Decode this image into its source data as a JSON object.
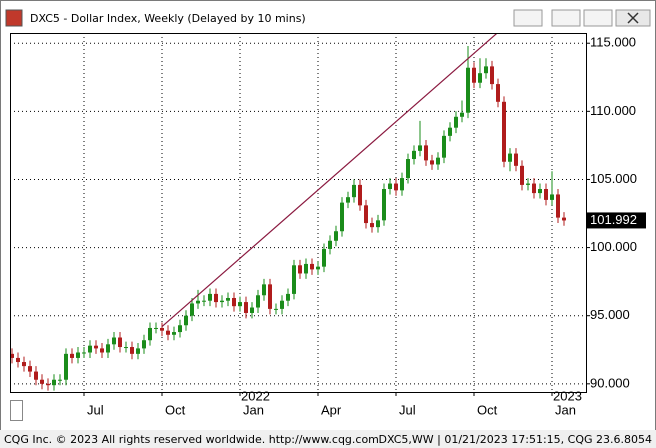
{
  "chart_data": {
    "type": "candlestick",
    "title": "DXC5 - Dollar Index, Weekly (Delayed by 10 mins)",
    "categories": [
      null,
      null,
      null,
      null,
      null,
      null,
      null,
      null,
      null,
      null,
      null,
      null,
      "Jul",
      null,
      null,
      null,
      null,
      null,
      null,
      null,
      null,
      null,
      null,
      null,
      null,
      "Oct",
      null,
      null,
      null,
      null,
      null,
      null,
      null,
      null,
      null,
      null,
      null,
      null,
      "Jan",
      null,
      null,
      null,
      null,
      null,
      null,
      null,
      null,
      null,
      null,
      null,
      null,
      "Apr",
      null,
      null,
      null,
      null,
      null,
      null,
      null,
      null,
      null,
      null,
      null,
      null,
      "Jul",
      null,
      null,
      null,
      null,
      null,
      null,
      null,
      null,
      null,
      null,
      null,
      null,
      "Oct",
      null,
      null,
      null,
      null,
      null,
      null,
      null,
      null,
      null,
      null,
      null,
      null,
      "Jan",
      null,
      null
    ],
    "year_labels": [
      "2022",
      "2023"
    ],
    "open": [
      92.2,
      91.9,
      91.6,
      91.3,
      90.9,
      90.3,
      90.0,
      89.9,
      90.3,
      90.3,
      92.2,
      91.9,
      92.3,
      92.3,
      92.8,
      92.6,
      92.3,
      92.9,
      93.4,
      92.7,
      92.7,
      92.2,
      92.6,
      93.2,
      94.1,
      94.1,
      93.9,
      93.6,
      93.8,
      94.3,
      95.0,
      95.9,
      96.1,
      96.1,
      96.6,
      96.0,
      96.1,
      96.3,
      95.7,
      96.0,
      95.2,
      95.6,
      96.5,
      97.3,
      95.5,
      95.5,
      96.1,
      96.6,
      98.7,
      98.1,
      98.8,
      98.4,
      98.6,
      99.9,
      100.5,
      101.2,
      103.3,
      103.7,
      104.6,
      103.1,
      101.8,
      101.5,
      102.0,
      104.3,
      104.7,
      104.2,
      105.1,
      106.5,
      107.1,
      107.5,
      106.4,
      106.1,
      106.6,
      108.2,
      108.8,
      109.6,
      109.9,
      113.2,
      112.1,
      112.8,
      113.3,
      112.0,
      110.7,
      106.3,
      106.9,
      106.0,
      104.6,
      104.7,
      104.0,
      104.3,
      103.5,
      103.9,
      102.2
    ],
    "high": [
      92.6,
      92.3,
      92.0,
      91.7,
      91.3,
      90.7,
      90.4,
      90.7,
      90.7,
      92.6,
      92.6,
      92.7,
      92.7,
      93.2,
      93.2,
      93.0,
      93.3,
      93.8,
      93.8,
      93.1,
      93.1,
      93.0,
      93.6,
      94.5,
      94.5,
      94.5,
      94.3,
      94.2,
      94.7,
      95.4,
      96.3,
      96.9,
      96.5,
      97.0,
      97.0,
      96.5,
      96.7,
      96.7,
      96.4,
      96.4,
      96.0,
      96.9,
      97.7,
      97.7,
      95.9,
      96.5,
      97.0,
      99.1,
      99.1,
      99.2,
      99.2,
      99.0,
      100.3,
      100.9,
      101.6,
      103.7,
      104.1,
      105.0,
      105.0,
      103.5,
      102.2,
      102.4,
      104.7,
      105.1,
      105.1,
      105.5,
      106.9,
      107.5,
      109.3,
      107.9,
      106.8,
      107.0,
      108.6,
      109.2,
      110.0,
      110.8,
      114.8,
      113.6,
      113.9,
      113.9,
      113.7,
      112.4,
      111.1,
      107.3,
      107.3,
      106.4,
      105.1,
      105.1,
      104.7,
      104.7,
      105.6,
      104.3,
      102.6
    ],
    "low": [
      91.5,
      91.2,
      90.9,
      90.5,
      89.9,
      89.6,
      89.5,
      89.5,
      89.9,
      89.9,
      91.5,
      91.5,
      91.9,
      91.9,
      92.2,
      91.9,
      91.9,
      92.5,
      92.3,
      92.3,
      91.8,
      91.8,
      92.2,
      92.8,
      93.7,
      93.5,
      93.2,
      93.2,
      93.4,
      93.9,
      94.6,
      95.5,
      95.7,
      95.7,
      95.6,
      95.6,
      95.7,
      95.3,
      95.3,
      94.8,
      94.8,
      95.2,
      96.1,
      95.1,
      95.1,
      95.1,
      95.7,
      96.2,
      97.7,
      97.7,
      98.0,
      98.0,
      98.2,
      99.5,
      100.1,
      100.8,
      102.9,
      103.3,
      102.7,
      101.4,
      101.1,
      101.1,
      101.6,
      103.9,
      103.8,
      103.8,
      104.7,
      106.1,
      106.7,
      106.0,
      105.7,
      105.7,
      106.2,
      107.8,
      108.4,
      109.2,
      109.5,
      111.7,
      111.7,
      112.4,
      111.6,
      110.3,
      105.9,
      105.6,
      105.6,
      104.2,
      104.2,
      103.6,
      103.6,
      103.1,
      103.1,
      101.8,
      101.6
    ],
    "close": [
      91.9,
      91.6,
      91.3,
      90.9,
      90.3,
      90.0,
      89.9,
      90.3,
      90.3,
      92.2,
      91.9,
      92.3,
      92.3,
      92.8,
      92.6,
      92.3,
      92.9,
      93.4,
      92.7,
      92.7,
      92.2,
      92.6,
      93.2,
      94.1,
      94.1,
      93.9,
      93.6,
      93.8,
      94.3,
      95.0,
      95.9,
      96.1,
      96.1,
      96.6,
      96.0,
      96.1,
      96.3,
      95.7,
      96.0,
      95.2,
      95.6,
      96.5,
      97.3,
      95.5,
      95.5,
      96.1,
      96.6,
      98.7,
      98.1,
      98.8,
      98.4,
      98.6,
      99.9,
      100.5,
      101.2,
      103.3,
      103.7,
      104.6,
      103.1,
      101.8,
      101.5,
      102.0,
      104.3,
      104.7,
      104.2,
      105.1,
      106.5,
      107.1,
      107.5,
      106.4,
      106.1,
      106.6,
      108.2,
      108.8,
      109.6,
      109.9,
      113.2,
      112.1,
      112.8,
      113.3,
      112.0,
      110.7,
      106.3,
      106.9,
      106.0,
      104.6,
      104.7,
      104.0,
      104.3,
      103.5,
      103.9,
      102.2,
      101.992
    ],
    "up_color": "#1a8c1a",
    "down_color": "#b01c1c",
    "last_price": 101.992,
    "trendline": {
      "x": [
        25,
        81
      ],
      "y": [
        94.2,
        115.8
      ],
      "color": "#8b1a40"
    },
    "ylim": [
      89.4,
      115.75
    ],
    "yticks": [
      {
        "value": 90,
        "label": "90.000"
      },
      {
        "value": 95,
        "label": "95.000"
      },
      {
        "value": 100,
        "label": "100.000"
      },
      {
        "value": 105,
        "label": "105.000"
      },
      {
        "value": 110,
        "label": "110.000"
      },
      {
        "value": 115,
        "label": "115.000"
      }
    ],
    "grid": true
  },
  "status_bar": {
    "left": "CQG Inc. © 2023 All rights reserved worldwide. http://www.cqg.com",
    "right": "DXC5,WW | 01/21/2023 17:51:15, CQG 23.6.8054"
  }
}
